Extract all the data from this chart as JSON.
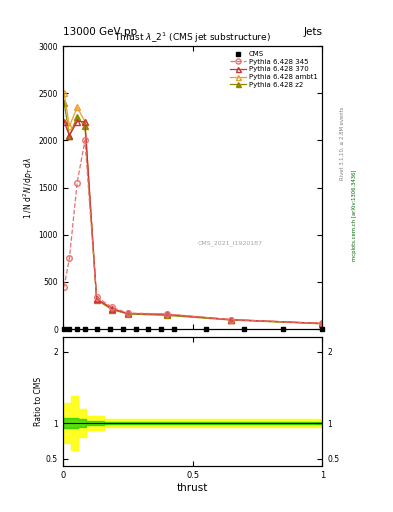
{
  "title_top": "13000 GeV pp",
  "title_right": "Jets",
  "plot_title": "Thrust $\\lambda\\_2^{1}$ (CMS jet substructure)",
  "xlabel": "thrust",
  "ylabel_ratio": "Ratio to CMS",
  "watermark": "CMS_2021_I1920187",
  "right_label_top": "Rivet 3.1.10, ≥ 2.8M events",
  "right_label_bottom": "mcplots.cern.ch [arXiv:1306.3436]",
  "cms_x": [
    0.005,
    0.025,
    0.055,
    0.085,
    0.13,
    0.18,
    0.23,
    0.28,
    0.33,
    0.38,
    0.43,
    0.55,
    0.7,
    0.85,
    1.0
  ],
  "cms_y": [
    0,
    0,
    0,
    0,
    0,
    0,
    0,
    0,
    0,
    0,
    0,
    0,
    0,
    0,
    0
  ],
  "p345_x": [
    0.005,
    0.025,
    0.055,
    0.085,
    0.13,
    0.19,
    0.25,
    0.4,
    0.65,
    1.0
  ],
  "p345_y": [
    450,
    750,
    1550,
    2000,
    340,
    230,
    170,
    160,
    100,
    60
  ],
  "p370_x": [
    0.005,
    0.025,
    0.055,
    0.085,
    0.13,
    0.19,
    0.25,
    0.4,
    0.65,
    1.0
  ],
  "p370_y": [
    2200,
    2050,
    2200,
    2200,
    320,
    215,
    165,
    155,
    100,
    60
  ],
  "pambt1_x": [
    0.005,
    0.025,
    0.055,
    0.085,
    0.13,
    0.19,
    0.25,
    0.4,
    0.65,
    1.0
  ],
  "pambt1_y": [
    2500,
    2150,
    2350,
    2200,
    320,
    215,
    165,
    155,
    100,
    60
  ],
  "pz2_x": [
    0.005,
    0.025,
    0.055,
    0.085,
    0.13,
    0.19,
    0.25,
    0.4,
    0.65,
    1.0
  ],
  "pz2_y": [
    2400,
    2050,
    2250,
    2150,
    310,
    205,
    160,
    145,
    95,
    55
  ],
  "ratio_yellow_x": [
    0.0,
    0.01,
    0.03,
    0.06,
    0.09,
    0.16,
    1.0
  ],
  "ratio_yellow_ylo": [
    0.72,
    0.72,
    0.62,
    0.8,
    0.9,
    0.95,
    0.97
  ],
  "ratio_yellow_yhi": [
    1.28,
    1.28,
    1.38,
    1.2,
    1.1,
    1.05,
    1.03
  ],
  "ratio_green_x": [
    0.0,
    0.01,
    0.03,
    0.06,
    0.09,
    0.16,
    1.0
  ],
  "ratio_green_ylo": [
    0.93,
    0.93,
    0.93,
    0.95,
    0.97,
    0.98,
    0.985
  ],
  "ratio_green_yhi": [
    1.07,
    1.07,
    1.07,
    1.05,
    1.03,
    1.02,
    1.015
  ],
  "color_345": "#e87070",
  "color_370": "#cc3333",
  "color_ambt1": "#e8a030",
  "color_z2": "#8b8b00",
  "color_cms": "black",
  "color_green": "#00cc00",
  "color_yellow": "#ffff00",
  "ylim_main": [
    0,
    3000
  ],
  "ylim_ratio": [
    0.4,
    2.2
  ],
  "xlim": [
    0.0,
    1.0
  ],
  "yticks_main": [
    0,
    500,
    1000,
    1500,
    2000,
    2500,
    3000
  ],
  "ytick_labels_main": [
    "0",
    "500",
    "1000",
    "1500",
    "2000",
    "2500",
    "3000"
  ],
  "yticks_ratio": [
    0.5,
    1.0,
    2.0
  ],
  "ytick_labels_ratio": [
    "0.5",
    "1",
    "2"
  ],
  "xticks": [
    0.0,
    0.5,
    1.0
  ],
  "xtick_labels": [
    "0",
    "0.5",
    "1"
  ]
}
